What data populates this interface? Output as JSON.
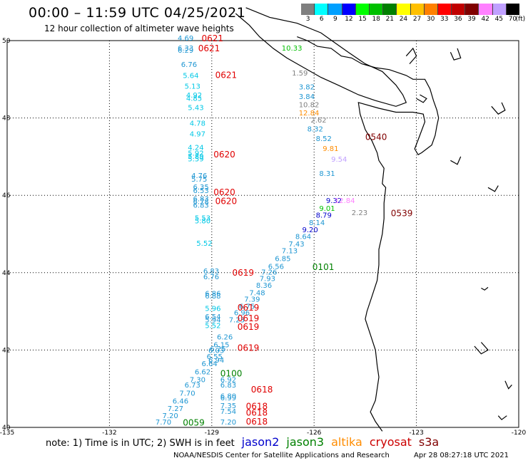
{
  "title": "00:00 – 11:59 UTC 04/25/2021",
  "subtitle": "12 hour collection of altimeter wave heights",
  "scale": {
    "unit_label": "(ft)",
    "bins": [
      {
        "label": "3",
        "color": "#7f7f7f"
      },
      {
        "label": "6",
        "color": "#00ffff"
      },
      {
        "label": "9",
        "color": "#00a0ff"
      },
      {
        "label": "12",
        "color": "#0000ff"
      },
      {
        "label": "15",
        "color": "#00ff00"
      },
      {
        "label": "18",
        "color": "#00c000"
      },
      {
        "label": "21",
        "color": "#008000"
      },
      {
        "label": "24",
        "color": "#ffff00"
      },
      {
        "label": "27",
        "color": "#ffc000"
      },
      {
        "label": "30",
        "color": "#ff8000"
      },
      {
        "label": "33",
        "color": "#ff0000"
      },
      {
        "label": "36",
        "color": "#c00000"
      },
      {
        "label": "39",
        "color": "#800000"
      },
      {
        "label": "42",
        "color": "#ff80ff"
      },
      {
        "label": "45",
        "color": "#c0a0ff"
      },
      {
        "label": "70",
        "color": "#000000"
      }
    ]
  },
  "axes": {
    "lon_ticks": [
      "-135",
      "-132",
      "-129",
      "-126",
      "-123",
      "-120"
    ],
    "lat_ticks": [
      "50",
      "48",
      "46",
      "44",
      "42",
      "40"
    ]
  },
  "colors": {
    "jason2": "#0000cc",
    "jason3": "#008000",
    "altika": "#ff8c00",
    "cryosat": "#cc0000",
    "s3a": "#800000",
    "cyan": "#00c8e6",
    "sky": "#1e96d2",
    "gray": "#808080",
    "green": "#00c000",
    "darkgreen": "#008000",
    "orange": "#ff8c00",
    "pink": "#ff80ff",
    "lavender": "#c0a0ff",
    "navy": "#0000cc",
    "red": "#e00000",
    "maroon": "#800000"
  },
  "measurements": [
    {
      "text": "4.69",
      "lon": -130.0,
      "lat": 50.0,
      "c": "sky"
    },
    {
      "text": "6.33",
      "lon": -130.0,
      "lat": 49.74,
      "c": "sky"
    },
    {
      "text": "6.29",
      "lon": -130.0,
      "lat": 49.69,
      "c": "sky"
    },
    {
      "text": "6.76",
      "lon": -129.9,
      "lat": 49.32,
      "c": "sky"
    },
    {
      "text": "5.64",
      "lon": -129.85,
      "lat": 49.03,
      "c": "cyan"
    },
    {
      "text": "5.13",
      "lon": -129.8,
      "lat": 48.76,
      "c": "cyan"
    },
    {
      "text": "4.92",
      "lon": -129.75,
      "lat": 48.53,
      "c": "cyan"
    },
    {
      "text": "4.85",
      "lon": -129.75,
      "lat": 48.44,
      "c": "cyan"
    },
    {
      "text": "5.43",
      "lon": -129.7,
      "lat": 48.2,
      "c": "cyan"
    },
    {
      "text": "4.78",
      "lon": -129.65,
      "lat": 47.8,
      "c": "cyan"
    },
    {
      "text": "4.97",
      "lon": -129.65,
      "lat": 47.52,
      "c": "cyan"
    },
    {
      "text": "4.24",
      "lon": -129.7,
      "lat": 47.17,
      "c": "cyan"
    },
    {
      "text": "5.92",
      "lon": -129.7,
      "lat": 47.03,
      "c": "cyan"
    },
    {
      "text": "5.89",
      "lon": -129.7,
      "lat": 46.94,
      "c": "cyan"
    },
    {
      "text": "5.59",
      "lon": -129.7,
      "lat": 46.88,
      "c": "cyan"
    },
    {
      "text": "4.76",
      "lon": -129.6,
      "lat": 46.45,
      "c": "sky"
    },
    {
      "text": "5.75",
      "lon": -129.6,
      "lat": 46.35,
      "c": "sky"
    },
    {
      "text": "6.35",
      "lon": -129.55,
      "lat": 46.15,
      "c": "sky"
    },
    {
      "text": "6.53",
      "lon": -129.55,
      "lat": 46.06,
      "c": "sky"
    },
    {
      "text": "6.83",
      "lon": -129.55,
      "lat": 45.85,
      "c": "sky"
    },
    {
      "text": "6.78",
      "lon": -129.55,
      "lat": 45.77,
      "c": "sky"
    },
    {
      "text": "6.83",
      "lon": -129.55,
      "lat": 45.68,
      "c": "sky"
    },
    {
      "text": "5.53",
      "lon": -129.5,
      "lat": 45.35,
      "c": "cyan"
    },
    {
      "text": "5.80",
      "lon": -129.5,
      "lat": 45.28,
      "c": "cyan"
    },
    {
      "text": "5.52",
      "lon": -129.45,
      "lat": 44.7,
      "c": "cyan"
    },
    {
      "text": "6.83",
      "lon": -129.25,
      "lat": 43.98,
      "c": "sky"
    },
    {
      "text": "6.76",
      "lon": -129.25,
      "lat": 43.83,
      "c": "sky"
    },
    {
      "text": "6.86",
      "lon": -129.2,
      "lat": 43.4,
      "c": "sky"
    },
    {
      "text": "6.88",
      "lon": -129.2,
      "lat": 43.33,
      "c": "sky"
    },
    {
      "text": "5.96",
      "lon": -129.2,
      "lat": 43.01,
      "c": "cyan"
    },
    {
      "text": "6.54",
      "lon": -129.2,
      "lat": 42.8,
      "c": "sky"
    },
    {
      "text": "5.94",
      "lon": -129.2,
      "lat": 42.72,
      "c": "sky"
    },
    {
      "text": "5.52",
      "lon": -129.2,
      "lat": 42.57,
      "c": "cyan"
    },
    {
      "text": "6.26",
      "lon": -128.85,
      "lat": 42.27,
      "c": "sky"
    },
    {
      "text": "6.15",
      "lon": -128.95,
      "lat": 42.07,
      "c": "sky"
    },
    {
      "text": "6.25",
      "lon": -129.05,
      "lat": 41.97,
      "c": "sky"
    },
    {
      "text": "6.03",
      "lon": -129.1,
      "lat": 41.92,
      "c": "sky"
    },
    {
      "text": "6.55",
      "lon": -129.15,
      "lat": 41.77,
      "c": "sky"
    },
    {
      "text": "6.94",
      "lon": -129.1,
      "lat": 41.68,
      "c": "sky"
    },
    {
      "text": "6.64",
      "lon": -129.3,
      "lat": 41.58,
      "c": "sky"
    },
    {
      "text": "6.62",
      "lon": -129.5,
      "lat": 41.37,
      "c": "sky"
    },
    {
      "text": "7.30",
      "lon": -129.65,
      "lat": 41.17,
      "c": "sky"
    },
    {
      "text": "6.73",
      "lon": -129.8,
      "lat": 41.03,
      "c": "sky"
    },
    {
      "text": "7.70",
      "lon": -129.95,
      "lat": 40.82,
      "c": "sky"
    },
    {
      "text": "6.46",
      "lon": -130.15,
      "lat": 40.62,
      "c": "sky"
    },
    {
      "text": "7.27",
      "lon": -130.3,
      "lat": 40.42,
      "c": "sky"
    },
    {
      "text": "7.20",
      "lon": -130.45,
      "lat": 40.24,
      "c": "sky"
    },
    {
      "text": "7.70",
      "lon": -130.65,
      "lat": 40.07,
      "c": "sky"
    },
    {
      "text": "6.92",
      "lon": -128.75,
      "lat": 41.17,
      "c": "sky"
    },
    {
      "text": "6.83",
      "lon": -128.75,
      "lat": 41.03,
      "c": "sky"
    },
    {
      "text": "6.80",
      "lon": -128.75,
      "lat": 40.75,
      "c": "sky"
    },
    {
      "text": "6.99",
      "lon": -128.75,
      "lat": 40.7,
      "c": "sky"
    },
    {
      "text": "7.35",
      "lon": -128.75,
      "lat": 40.5,
      "c": "sky"
    },
    {
      "text": "7.54",
      "lon": -128.75,
      "lat": 40.35,
      "c": "sky"
    },
    {
      "text": "7.20",
      "lon": -128.75,
      "lat": 40.07,
      "c": "sky"
    },
    {
      "text": "7.26",
      "lon": -127.55,
      "lat": 43.95,
      "c": "sky"
    },
    {
      "text": "7.93",
      "lon": -127.6,
      "lat": 43.78,
      "c": "sky"
    },
    {
      "text": "8.36",
      "lon": -127.7,
      "lat": 43.61,
      "c": "sky"
    },
    {
      "text": "7.48",
      "lon": -127.9,
      "lat": 43.42,
      "c": "sky"
    },
    {
      "text": "7.39",
      "lon": -128.05,
      "lat": 43.25,
      "c": "sky"
    },
    {
      "text": "6.75",
      "lon": -128.2,
      "lat": 43.07,
      "c": "sky"
    },
    {
      "text": "6.96",
      "lon": -128.35,
      "lat": 42.9,
      "c": "sky"
    },
    {
      "text": "7.23",
      "lon": -128.5,
      "lat": 42.72,
      "c": "sky"
    },
    {
      "text": "6.56",
      "lon": -127.35,
      "lat": 44.1,
      "c": "sky"
    },
    {
      "text": "6.85",
      "lon": -127.15,
      "lat": 44.3,
      "c": "sky"
    },
    {
      "text": "7.13",
      "lon": -126.95,
      "lat": 44.5,
      "c": "sky"
    },
    {
      "text": "7.43",
      "lon": -126.75,
      "lat": 44.68,
      "c": "sky"
    },
    {
      "text": "8.64",
      "lon": -126.55,
      "lat": 44.87,
      "c": "sky"
    },
    {
      "text": "9.20",
      "lon": -126.35,
      "lat": 45.05,
      "c": "navy"
    },
    {
      "text": "8.14",
      "lon": -126.15,
      "lat": 45.23,
      "c": "sky"
    },
    {
      "text": "8.79",
      "lon": -125.95,
      "lat": 45.42,
      "c": "navy"
    },
    {
      "text": "9.01",
      "lon": -125.85,
      "lat": 45.6,
      "c": "green"
    },
    {
      "text": "9.32",
      "lon": -125.65,
      "lat": 45.8,
      "c": "navy"
    },
    {
      "text": "8.31",
      "lon": -125.85,
      "lat": 46.5,
      "c": "sky"
    },
    {
      "text": "9.54",
      "lon": -125.5,
      "lat": 46.87,
      "c": "lavender"
    },
    {
      "text": "9.81",
      "lon": -125.75,
      "lat": 47.15,
      "c": "orange"
    },
    {
      "text": "8.52",
      "lon": -125.95,
      "lat": 47.4,
      "c": "sky"
    },
    {
      "text": "8.32",
      "lon": -126.2,
      "lat": 47.65,
      "c": "sky"
    },
    {
      "text": "2.62",
      "lon": -126.1,
      "lat": 47.88,
      "c": "gray"
    },
    {
      "text": "12.84",
      "lon": -126.45,
      "lat": 48.07,
      "c": "orange"
    },
    {
      "text": "10.82",
      "lon": -126.45,
      "lat": 48.28,
      "c": "gray"
    },
    {
      "text": "3.84",
      "lon": -126.45,
      "lat": 48.49,
      "c": "sky"
    },
    {
      "text": "3.82",
      "lon": -126.45,
      "lat": 48.74,
      "c": "sky"
    },
    {
      "text": "1.59",
      "lon": -126.65,
      "lat": 49.1,
      "c": "gray"
    },
    {
      "text": "10.33",
      "lon": -126.95,
      "lat": 49.74,
      "c": "green"
    },
    {
      "text": "12.84",
      "lon": -125.4,
      "lat": 45.8,
      "c": "pink"
    },
    {
      "text": "2.23",
      "lon": -124.9,
      "lat": 45.49,
      "c": "gray"
    }
  ],
  "passes": [
    {
      "text": "0621",
      "lon": -129.3,
      "lat": 49.98,
      "c": "red"
    },
    {
      "text": "0621",
      "lon": -129.4,
      "lat": 49.72,
      "c": "red"
    },
    {
      "text": "0621",
      "lon": -128.9,
      "lat": 49.03,
      "c": "red"
    },
    {
      "text": "0620",
      "lon": -128.95,
      "lat": 46.98,
      "c": "red"
    },
    {
      "text": "0620",
      "lon": -128.95,
      "lat": 46.0,
      "c": "red"
    },
    {
      "text": "0620",
      "lon": -128.9,
      "lat": 45.77,
      "c": "red"
    },
    {
      "text": "0619",
      "lon": -128.4,
      "lat": 43.92,
      "c": "red"
    },
    {
      "text": "0619",
      "lon": -128.25,
      "lat": 43.02,
      "c": "red"
    },
    {
      "text": "0619",
      "lon": -128.25,
      "lat": 42.74,
      "c": "red"
    },
    {
      "text": "0619",
      "lon": -128.25,
      "lat": 42.52,
      "c": "red"
    },
    {
      "text": "0619",
      "lon": -128.25,
      "lat": 41.98,
      "c": "red"
    },
    {
      "text": "0618",
      "lon": -127.85,
      "lat": 40.9,
      "c": "red"
    },
    {
      "text": "0618",
      "lon": -128.0,
      "lat": 40.47,
      "c": "red"
    },
    {
      "text": "0618",
      "lon": -128.0,
      "lat": 40.3,
      "c": "red"
    },
    {
      "text": "0618",
      "lon": -128.0,
      "lat": 40.07,
      "c": "red"
    },
    {
      "text": "0100",
      "lon": -128.75,
      "lat": 41.32,
      "c": "darkgreen"
    },
    {
      "text": "0101",
      "lon": -126.05,
      "lat": 44.07,
      "c": "darkgreen"
    },
    {
      "text": "0059",
      "lon": -129.85,
      "lat": 40.05,
      "c": "darkgreen"
    },
    {
      "text": "0540",
      "lon": -124.5,
      "lat": 47.43,
      "c": "maroon"
    },
    {
      "text": "0539",
      "lon": -123.75,
      "lat": 45.46,
      "c": "maroon"
    }
  ],
  "footer": {
    "note": "note: 1) Time is in UTC; 2) SWH is in feet",
    "jason2": "jason2",
    "jason3": "jason3",
    "altika": "altika",
    "cryosat": "cryosat",
    "s3a": "s3a"
  },
  "credit": "NOAA/NESDIS Center for Satellite Applications and Research",
  "timestamp": "Apr 28 08:27:18 UTC 2021"
}
